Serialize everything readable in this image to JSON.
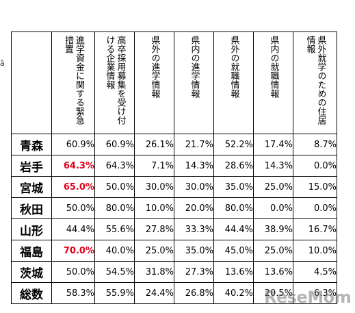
{
  "edge_mark": "â",
  "headers": [
    "進学資金に関する緊急措置",
    "高卒採用募集を受け付ける企業情報",
    "県外の進学情報",
    "県内の進学情報",
    "県外の就職情報",
    "県内の就職情報",
    "県外就学のための住居情報"
  ],
  "rows": [
    {
      "pref": "青森",
      "values": [
        "60.9%",
        "60.9%",
        "26.1%",
        "21.7%",
        "52.2%",
        "17.4%",
        "8.7%"
      ]
    },
    {
      "pref": "岩手",
      "values": [
        "64.3%",
        "64.3%",
        "7.1%",
        "14.3%",
        "28.6%",
        "14.3%",
        "0.0%"
      ]
    },
    {
      "pref": "宮城",
      "values": [
        "65.0%",
        "50.0%",
        "30.0%",
        "30.0%",
        "35.0%",
        "25.0%",
        "15.0%"
      ]
    },
    {
      "pref": "秋田",
      "values": [
        "50.0%",
        "80.0%",
        "10.0%",
        "20.0%",
        "80.0%",
        "0.0%",
        "0.0%"
      ]
    },
    {
      "pref": "山形",
      "values": [
        "44.4%",
        "55.6%",
        "27.8%",
        "33.3%",
        "44.4%",
        "38.9%",
        "16.7%"
      ]
    },
    {
      "pref": "福島",
      "values": [
        "70.0%",
        "40.0%",
        "25.0%",
        "35.0%",
        "45.0%",
        "25.0%",
        "10.0%"
      ]
    },
    {
      "pref": "茨城",
      "values": [
        "50.0%",
        "54.5%",
        "31.8%",
        "27.3%",
        "13.6%",
        "13.6%",
        "4.5%"
      ]
    },
    {
      "pref": "総数",
      "values": [
        "58.3%",
        "55.9%",
        "24.4%",
        "26.8%",
        "40.2%",
        "20.5%",
        "6.3%"
      ]
    }
  ],
  "highlighted_cells": [
    {
      "row": 1,
      "col": 0
    },
    {
      "row": 2,
      "col": 0
    },
    {
      "row": 5,
      "col": 0
    }
  ],
  "highlight_color": "#e2001a",
  "watermark": "ReseMom"
}
